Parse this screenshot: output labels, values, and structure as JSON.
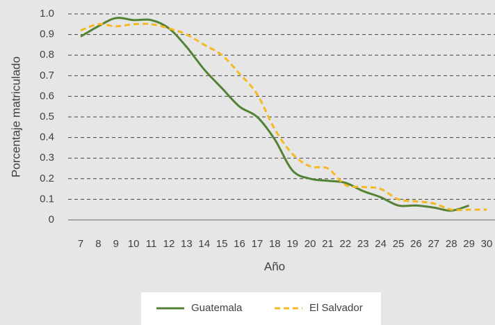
{
  "chart_data": {
    "type": "line",
    "x_label": "Año",
    "y_label": "Porcentaje matriculado",
    "x": [
      7,
      8,
      9,
      10,
      11,
      12,
      13,
      14,
      15,
      16,
      17,
      18,
      19,
      20,
      21,
      22,
      23,
      24,
      25,
      26,
      27,
      28,
      29,
      30
    ],
    "xlim": [
      7,
      30
    ],
    "xticks": [
      7,
      8,
      9,
      10,
      11,
      12,
      13,
      14,
      15,
      16,
      17,
      18,
      19,
      20,
      21,
      22,
      23,
      24,
      25,
      26,
      27,
      28,
      29,
      30
    ],
    "ylim": [
      0,
      1
    ],
    "yticks": [
      0,
      0.1,
      0.2,
      0.3,
      0.4,
      0.5,
      0.6,
      0.7,
      0.8,
      0.9,
      {
        "value": 1,
        "label": "1.0"
      }
    ],
    "grid": true,
    "legend": "bottom",
    "series": [
      {
        "name": "Guatemala",
        "color": "#548235",
        "dash": false,
        "values": [
          0.89,
          0.94,
          0.98,
          0.97,
          0.97,
          0.93,
          0.84,
          0.73,
          0.64,
          0.55,
          0.5,
          0.39,
          0.24,
          0.2,
          0.19,
          0.18,
          0.14,
          0.11,
          0.07,
          0.07,
          0.06,
          0.045,
          0.07,
          null
        ]
      },
      {
        "name": "El Salvador",
        "color": "#f5b820",
        "dash": true,
        "values": [
          0.92,
          0.95,
          0.94,
          0.95,
          0.95,
          0.93,
          0.9,
          0.85,
          0.8,
          0.71,
          0.61,
          0.44,
          0.32,
          0.26,
          0.25,
          0.17,
          0.16,
          0.15,
          0.1,
          0.09,
          0.08,
          0.05,
          0.05,
          0.05
        ]
      }
    ]
  }
}
